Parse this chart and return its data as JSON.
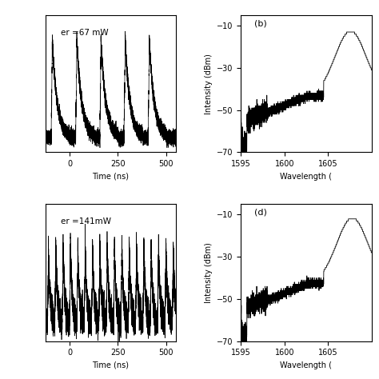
{
  "panel_b_label": "(b)",
  "panel_d_label": "(d)",
  "pump_power_a": "er =67 mW",
  "pump_power_c": "er =141mW",
  "time_xlabel": "Time (ns)",
  "wavelength_xlabel": "Wavelength (",
  "intensity_ylabel": "Intensity (dBm)",
  "time_xlim": [
    -125,
    550
  ],
  "time_xticks": [
    0,
    250,
    500
  ],
  "wavelength_xlim": [
    1595,
    1610
  ],
  "wavelength_xticks": [
    1595,
    1600,
    1605
  ],
  "intensity_ylim": [
    -70,
    -5
  ],
  "intensity_yticks": [
    -70,
    -50,
    -30,
    -10
  ],
  "background_color": "#ffffff",
  "line_color": "#000000"
}
